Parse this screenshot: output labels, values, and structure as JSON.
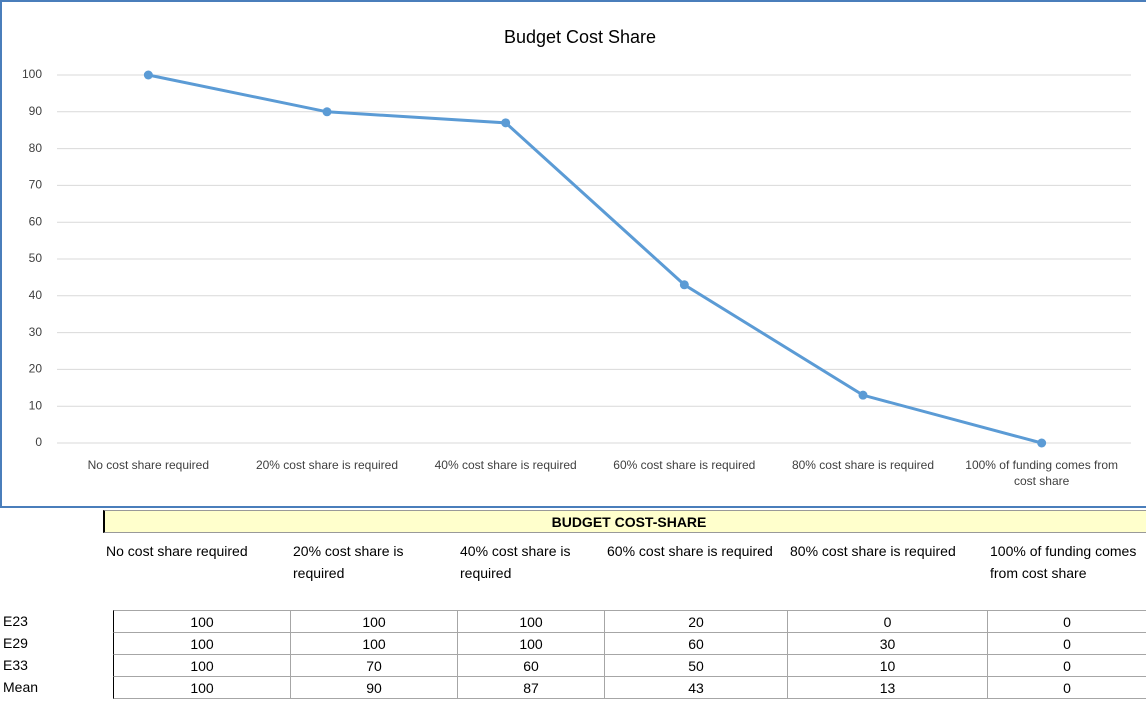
{
  "chart_data": {
    "type": "line",
    "title": "Budget Cost Share",
    "categories": [
      "No cost share required",
      "20% cost share is required",
      "40% cost share is required",
      "60% cost share is required",
      "80% cost share is required",
      "100% of funding comes from cost share"
    ],
    "values": [
      100,
      90,
      87,
      43,
      13,
      0
    ],
    "color": "#5b9bd5",
    "ylim": [
      0,
      100
    ],
    "yticks": [
      0,
      10,
      20,
      30,
      40,
      50,
      60,
      70,
      80,
      90,
      100
    ],
    "grid": true
  },
  "table": {
    "title": "BUDGET COST-SHARE",
    "columns": [
      "No cost share required",
      "20% cost share is required",
      "40% cost share is required",
      "60% cost share is required",
      "80% cost share is required",
      "100% of funding comes from cost share"
    ],
    "rows": [
      {
        "label": "E23",
        "values": [
          100,
          100,
          100,
          20,
          0,
          0
        ]
      },
      {
        "label": "E29",
        "values": [
          100,
          100,
          100,
          60,
          30,
          0
        ]
      },
      {
        "label": "E33",
        "values": [
          100,
          70,
          60,
          50,
          10,
          0
        ]
      },
      {
        "label": "Mean",
        "values": [
          100,
          90,
          87,
          43,
          13,
          0
        ]
      }
    ]
  }
}
